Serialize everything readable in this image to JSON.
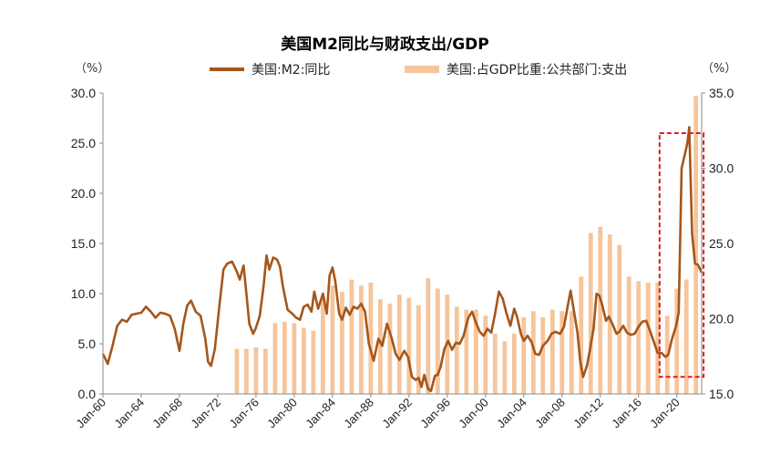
{
  "chart_data": {
    "type": "line+bar",
    "title": "美国M2同比与财政支出/GDP",
    "left_axis_unit": "（%）",
    "right_axis_unit": "（%）",
    "left_ylim": [
      0,
      30
    ],
    "right_ylim": [
      15,
      35
    ],
    "left_ticks": [
      "0.0",
      "5.0",
      "10.0",
      "15.0",
      "20.0",
      "25.0",
      "30.0"
    ],
    "right_ticks": [
      "15.0",
      "20.0",
      "25.0",
      "30.0",
      "35.0"
    ],
    "x_range": [
      1960,
      2022.6
    ],
    "x_ticks": [
      {
        "label": "Jan-60",
        "year": 1960
      },
      {
        "label": "Jan-64",
        "year": 1964
      },
      {
        "label": "Jan-68",
        "year": 1968
      },
      {
        "label": "Jan-72",
        "year": 1972
      },
      {
        "label": "Jan-76",
        "year": 1976
      },
      {
        "label": "Jan-80",
        "year": 1980
      },
      {
        "label": "Jan-84",
        "year": 1984
      },
      {
        "label": "Jan-88",
        "year": 1988
      },
      {
        "label": "Jan-92",
        "year": 1992
      },
      {
        "label": "Jan-96",
        "year": 1996
      },
      {
        "label": "Jan-00",
        "year": 2000
      },
      {
        "label": "Jan-04",
        "year": 2004
      },
      {
        "label": "Jan-08",
        "year": 2008
      },
      {
        "label": "Jan-12",
        "year": 2012
      },
      {
        "label": "Jan-16",
        "year": 2016
      },
      {
        "label": "Jan-20",
        "year": 2020
      }
    ],
    "series": [
      {
        "name": "美国:M2:同比",
        "axis": "left",
        "kind": "line",
        "color": "#A5561A",
        "points": [
          [
            1960.0,
            4.0
          ],
          [
            1960.5,
            3.0
          ],
          [
            1961.0,
            4.8
          ],
          [
            1961.5,
            6.8
          ],
          [
            1962.0,
            7.4
          ],
          [
            1962.5,
            7.2
          ],
          [
            1963.0,
            7.9
          ],
          [
            1963.5,
            8.0
          ],
          [
            1964.0,
            8.1
          ],
          [
            1964.5,
            8.7
          ],
          [
            1965.0,
            8.2
          ],
          [
            1965.5,
            7.6
          ],
          [
            1966.0,
            8.1
          ],
          [
            1966.5,
            8.0
          ],
          [
            1967.0,
            7.8
          ],
          [
            1967.5,
            6.5
          ],
          [
            1968.0,
            4.3
          ],
          [
            1968.4,
            7.0
          ],
          [
            1968.8,
            8.8
          ],
          [
            1969.2,
            9.3
          ],
          [
            1969.7,
            8.2
          ],
          [
            1970.2,
            7.8
          ],
          [
            1970.7,
            5.5
          ],
          [
            1971.0,
            3.2
          ],
          [
            1971.3,
            2.8
          ],
          [
            1971.7,
            4.5
          ],
          [
            1972.2,
            9.0
          ],
          [
            1972.6,
            12.4
          ],
          [
            1973.0,
            13.0
          ],
          [
            1973.5,
            13.2
          ],
          [
            1974.0,
            12.2
          ],
          [
            1974.3,
            11.4
          ],
          [
            1974.7,
            12.8
          ],
          [
            1975.0,
            10.0
          ],
          [
            1975.3,
            7.0
          ],
          [
            1975.7,
            6.0
          ],
          [
            1976.0,
            6.6
          ],
          [
            1976.4,
            7.8
          ],
          [
            1976.8,
            10.8
          ],
          [
            1977.1,
            13.8
          ],
          [
            1977.4,
            12.4
          ],
          [
            1977.8,
            13.6
          ],
          [
            1978.2,
            13.4
          ],
          [
            1978.5,
            12.7
          ],
          [
            1978.8,
            10.8
          ],
          [
            1979.3,
            8.4
          ],
          [
            1979.8,
            8.0
          ],
          [
            1980.2,
            7.6
          ],
          [
            1980.6,
            7.4
          ],
          [
            1981.0,
            8.7
          ],
          [
            1981.4,
            8.9
          ],
          [
            1981.8,
            8.2
          ],
          [
            1982.1,
            10.2
          ],
          [
            1982.5,
            8.5
          ],
          [
            1983.0,
            10.0
          ],
          [
            1983.4,
            8.0
          ],
          [
            1983.7,
            11.8
          ],
          [
            1984.0,
            12.6
          ],
          [
            1984.3,
            11.2
          ],
          [
            1984.7,
            8.0
          ],
          [
            1985.0,
            7.4
          ],
          [
            1985.4,
            8.6
          ],
          [
            1985.8,
            7.9
          ],
          [
            1986.2,
            8.7
          ],
          [
            1986.6,
            8.5
          ],
          [
            1987.0,
            9.0
          ],
          [
            1987.4,
            8.2
          ],
          [
            1987.8,
            5.0
          ],
          [
            1988.3,
            3.3
          ],
          [
            1988.8,
            5.5
          ],
          [
            1989.2,
            4.8
          ],
          [
            1989.7,
            7.0
          ],
          [
            1990.2,
            5.5
          ],
          [
            1990.6,
            4.0
          ],
          [
            1991.0,
            3.4
          ],
          [
            1991.5,
            4.3
          ],
          [
            1991.9,
            3.7
          ],
          [
            1992.3,
            1.7
          ],
          [
            1992.7,
            1.4
          ],
          [
            1993.0,
            1.6
          ],
          [
            1993.3,
            0.7
          ],
          [
            1993.6,
            1.9
          ],
          [
            1994.0,
            0.5
          ],
          [
            1994.3,
            0.3
          ],
          [
            1994.7,
            1.8
          ],
          [
            1995.0,
            1.9
          ],
          [
            1995.3,
            2.7
          ],
          [
            1995.7,
            4.5
          ],
          [
            1996.1,
            5.3
          ],
          [
            1996.5,
            4.4
          ],
          [
            1996.9,
            5.1
          ],
          [
            1997.3,
            5.0
          ],
          [
            1997.7,
            5.8
          ],
          [
            1998.2,
            7.6
          ],
          [
            1998.6,
            8.2
          ],
          [
            1999.0,
            7.1
          ],
          [
            1999.4,
            6.2
          ],
          [
            1999.8,
            5.8
          ],
          [
            2000.2,
            6.5
          ],
          [
            2000.6,
            6.1
          ],
          [
            2001.0,
            8.0
          ],
          [
            2001.4,
            10.2
          ],
          [
            2001.8,
            9.5
          ],
          [
            2002.2,
            8.0
          ],
          [
            2002.6,
            6.8
          ],
          [
            2003.0,
            8.5
          ],
          [
            2003.3,
            7.7
          ],
          [
            2003.7,
            6.0
          ],
          [
            2004.0,
            5.3
          ],
          [
            2004.4,
            5.8
          ],
          [
            2004.8,
            5.2
          ],
          [
            2005.2,
            4.0
          ],
          [
            2005.6,
            3.9
          ],
          [
            2006.0,
            4.8
          ],
          [
            2006.5,
            5.3
          ],
          [
            2006.9,
            6.0
          ],
          [
            2007.3,
            6.2
          ],
          [
            2007.8,
            6.0
          ],
          [
            2008.2,
            6.7
          ],
          [
            2008.6,
            8.8
          ],
          [
            2008.9,
            10.3
          ],
          [
            2009.2,
            8.5
          ],
          [
            2009.6,
            6.2
          ],
          [
            2009.9,
            3.3
          ],
          [
            2010.2,
            1.7
          ],
          [
            2010.6,
            2.8
          ],
          [
            2010.9,
            4.3
          ],
          [
            2011.3,
            6.5
          ],
          [
            2011.6,
            10.0
          ],
          [
            2011.9,
            9.8
          ],
          [
            2012.2,
            8.9
          ],
          [
            2012.6,
            7.3
          ],
          [
            2012.9,
            7.7
          ],
          [
            2013.3,
            6.9
          ],
          [
            2013.7,
            6.0
          ],
          [
            2014.0,
            6.2
          ],
          [
            2014.4,
            6.8
          ],
          [
            2014.8,
            6.1
          ],
          [
            2015.2,
            5.9
          ],
          [
            2015.6,
            6.0
          ],
          [
            2016.0,
            6.7
          ],
          [
            2016.4,
            7.2
          ],
          [
            2016.8,
            7.3
          ],
          [
            2017.2,
            6.3
          ],
          [
            2017.6,
            5.2
          ],
          [
            2018.0,
            4.1
          ],
          [
            2018.4,
            4.1
          ],
          [
            2018.8,
            3.7
          ],
          [
            2019.1,
            3.9
          ],
          [
            2019.5,
            5.5
          ],
          [
            2019.9,
            6.7
          ],
          [
            2020.2,
            8.1
          ],
          [
            2020.5,
            22.5
          ],
          [
            2020.8,
            23.7
          ],
          [
            2021.1,
            25.0
          ],
          [
            2021.3,
            26.6
          ],
          [
            2021.6,
            16.0
          ],
          [
            2021.9,
            13.0
          ],
          [
            2022.2,
            12.9
          ],
          [
            2022.6,
            12.1
          ]
        ]
      },
      {
        "name": "美国:占GDP比重:公共部门:支出",
        "axis": "right",
        "kind": "bar",
        "color": "#F6C59B",
        "points": [
          [
            1974,
            18.0
          ],
          [
            1975,
            18.0
          ],
          [
            1976,
            18.1
          ],
          [
            1977,
            18.0
          ],
          [
            1978,
            19.7
          ],
          [
            1979,
            19.8
          ],
          [
            1980,
            19.7
          ],
          [
            1981,
            19.4
          ],
          [
            1982,
            19.2
          ],
          [
            1983,
            21.5
          ],
          [
            1984,
            22.2
          ],
          [
            1985,
            21.8
          ],
          [
            1986,
            22.6
          ],
          [
            1987,
            22.2
          ],
          [
            1988,
            22.4
          ],
          [
            1989,
            21.3
          ],
          [
            1990,
            21.0
          ],
          [
            1991,
            21.6
          ],
          [
            1992,
            21.4
          ],
          [
            1993,
            20.9
          ],
          [
            1994,
            22.7
          ],
          [
            1995,
            22.0
          ],
          [
            1996,
            21.6
          ],
          [
            1997,
            20.8
          ],
          [
            1998,
            20.6
          ],
          [
            1999,
            20.6
          ],
          [
            2000,
            20.2
          ],
          [
            2001,
            19.0
          ],
          [
            2002,
            18.5
          ],
          [
            2003,
            19.0
          ],
          [
            2004,
            20.1
          ],
          [
            2005,
            20.5
          ],
          [
            2006,
            20.1
          ],
          [
            2007,
            20.6
          ],
          [
            2008,
            20.5
          ],
          [
            2009,
            20.5
          ],
          [
            2010,
            22.8
          ],
          [
            2011,
            25.7
          ],
          [
            2012,
            26.1
          ],
          [
            2013,
            25.6
          ],
          [
            2014,
            24.9
          ],
          [
            2015,
            22.8
          ],
          [
            2016,
            22.5
          ],
          [
            2017,
            22.4
          ],
          [
            2018,
            22.4
          ],
          [
            2019,
            20.2
          ],
          [
            2020,
            22.0
          ],
          [
            2021,
            22.6
          ],
          [
            2022,
            34.8
          ]
        ]
      }
    ],
    "highlight_box": {
      "x_from": 2018.2,
      "x_to": 2022.8,
      "left_value_from": 1.7,
      "left_value_to": 26.0,
      "color": "#D9201E"
    }
  }
}
